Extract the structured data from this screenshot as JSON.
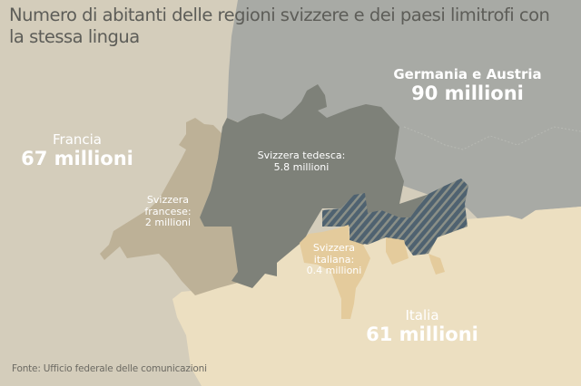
{
  "title": "Numero di abitanti delle regioni svizzere e dei paesi limitrofi con la stessa lingua",
  "regions": {
    "germany_austria": {
      "name": "Germania e Austria",
      "population": "90 millioni",
      "color": "#a8aaa5"
    },
    "france": {
      "name": "Francia",
      "population": "67 millioni",
      "color": "#d4cdbb"
    },
    "italy": {
      "name": "Italia",
      "population": "61 millioni",
      "color": "#ecdfc1"
    },
    "swiss_german": {
      "name": "Svizzera tedesca:",
      "population": "5.8 millioni",
      "color": "#7e8179"
    },
    "swiss_french": {
      "name_line1": "Svizzera",
      "name_line2": "francese:",
      "population": "2 millioni",
      "color": "#bdb197"
    },
    "swiss_italian": {
      "name_line1": "Svizzera",
      "name_line2": "italiana:",
      "population": "0.4 millioni",
      "color": "#e4cb9c"
    },
    "graubunden_multilingual": {
      "pattern": "hatched",
      "color": "#4f6270"
    }
  },
  "source": "Fonte: Ufficio federale delle comunicazioni"
}
